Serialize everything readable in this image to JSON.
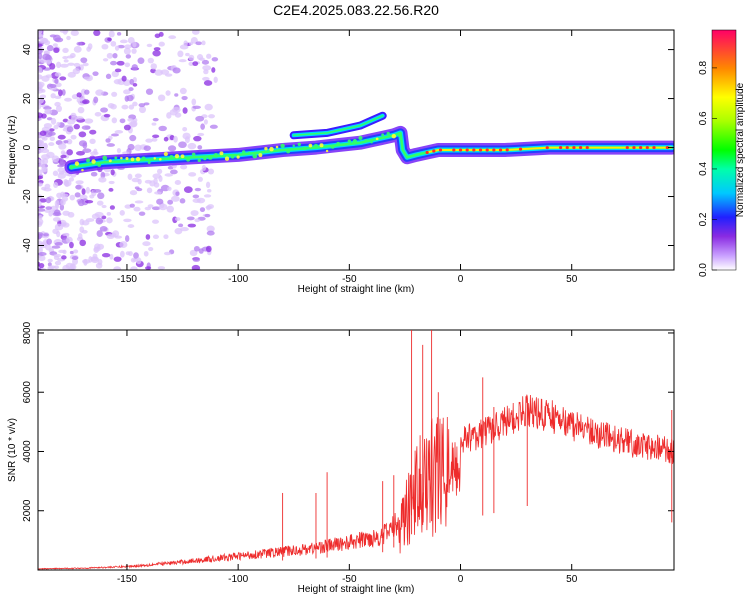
{
  "title": "C2E4.2025.083.22.56.R20",
  "chart_data": [
    {
      "id": "spectrogram",
      "type": "heatmap",
      "xlabel": "Height of straight line (km)",
      "ylabel": "Frequency (Hz)",
      "xlim": [
        -190,
        96
      ],
      "ylim": [
        -50,
        48
      ],
      "xticks": [
        -150,
        -100,
        -50,
        0,
        50
      ],
      "yticks": [
        -40,
        -20,
        0,
        20,
        40
      ],
      "ridge": {
        "description": "main signal ridge (frequency vs height)",
        "points": [
          [
            -175,
            -8
          ],
          [
            -160,
            -6
          ],
          [
            -140,
            -5
          ],
          [
            -120,
            -4
          ],
          [
            -100,
            -3
          ],
          [
            -80,
            -1
          ],
          [
            -65,
            0
          ],
          [
            -55,
            1
          ],
          [
            -45,
            2
          ],
          [
            -40,
            3
          ],
          [
            -35,
            4
          ],
          [
            -30,
            5
          ],
          [
            -27,
            6
          ],
          [
            -26,
            -1
          ],
          [
            -24,
            -4
          ],
          [
            -20,
            -3
          ],
          [
            -15,
            -2
          ],
          [
            -10,
            -1
          ],
          [
            0,
            -1
          ],
          [
            20,
            -1
          ],
          [
            40,
            0
          ],
          [
            60,
            0
          ],
          [
            80,
            0
          ],
          [
            95,
            0
          ]
        ]
      },
      "branch": [
        [
          -75,
          5
        ],
        [
          -60,
          6
        ],
        [
          -50,
          8
        ],
        [
          -45,
          9
        ],
        [
          -40,
          11
        ],
        [
          -35,
          13
        ]
      ],
      "colorbar": {
        "label": "Normalized spectral amplitude",
        "range": [
          0,
          0.95
        ],
        "ticks": [
          0.0,
          0.2,
          0.4,
          0.6,
          0.8
        ]
      }
    },
    {
      "id": "snr",
      "type": "line",
      "xlabel": "Height of straight line (km)",
      "ylabel": "SNR (10 * v/v)",
      "xlim": [
        -190,
        96
      ],
      "ylim": [
        0,
        8100
      ],
      "xticks": [
        -150,
        -100,
        -50,
        0,
        50
      ],
      "yticks": [
        2000,
        4000,
        6000,
        8000
      ],
      "color": "#ee2c2c",
      "envelope": [
        [
          -190,
          50
        ],
        [
          -170,
          80
        ],
        [
          -150,
          150
        ],
        [
          -130,
          300
        ],
        [
          -110,
          500
        ],
        [
          -90,
          700
        ],
        [
          -70,
          900
        ],
        [
          -50,
          1200
        ],
        [
          -35,
          1500
        ],
        [
          -25,
          2300
        ],
        [
          -20,
          3500
        ],
        [
          -15,
          4000
        ],
        [
          -10,
          4300
        ],
        [
          0,
          4400
        ],
        [
          10,
          4600
        ],
        [
          20,
          5000
        ],
        [
          30,
          5400
        ],
        [
          40,
          5200
        ],
        [
          50,
          4900
        ],
        [
          60,
          4600
        ],
        [
          70,
          4400
        ],
        [
          80,
          4200
        ],
        [
          90,
          4100
        ],
        [
          96,
          4000
        ]
      ],
      "peaks": [
        [
          -22,
          8100
        ],
        [
          -17,
          7600
        ],
        [
          -13,
          8100
        ],
        [
          -10,
          6000
        ],
        [
          10,
          6500
        ],
        [
          15,
          5500
        ],
        [
          30,
          5800
        ],
        [
          -80,
          2600
        ],
        [
          -65,
          2600
        ],
        [
          -60,
          3300
        ],
        [
          -35,
          3000
        ],
        [
          -30,
          3200
        ],
        [
          95,
          5400
        ]
      ]
    }
  ]
}
